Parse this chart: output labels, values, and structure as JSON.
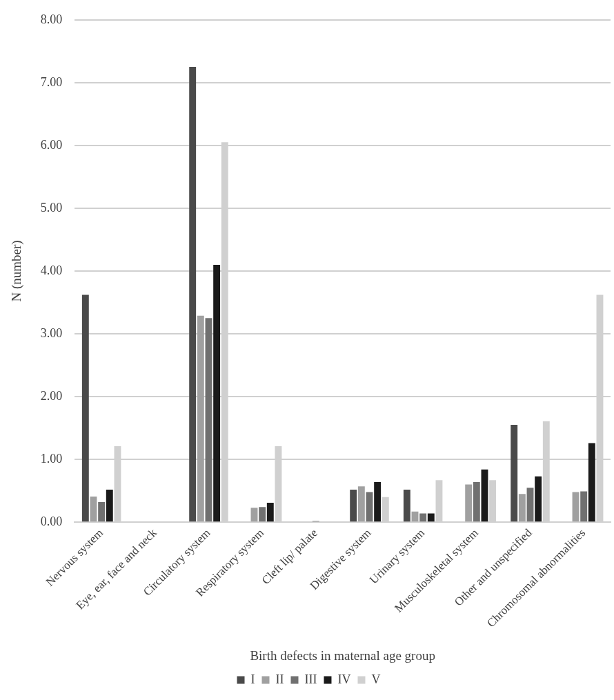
{
  "chart_data": {
    "type": "bar",
    "xlabel": "Birth defects in maternal age group",
    "ylabel": "N (number)",
    "categories": [
      "Nervous system",
      "Eye, ear, face and neck",
      "Circulatory system",
      "Respiratory system",
      "Cleft lip/ palate",
      "Digestive system",
      "Urinary system",
      "Musculoskeletal system",
      "Other and unspecified",
      "Chromosomal abnormalities"
    ],
    "series": [
      {
        "name": "I",
        "color": "#4a4a4a",
        "values": [
          3.62,
          0,
          7.25,
          0,
          0,
          0.52,
          0.52,
          0,
          1.55,
          0
        ]
      },
      {
        "name": "II",
        "color": "#a0a0a0",
        "values": [
          0.41,
          0,
          3.29,
          0.23,
          0,
          0.57,
          0.17,
          0.6,
          0.45,
          0.48
        ]
      },
      {
        "name": "III",
        "color": "#707070",
        "values": [
          0.32,
          0,
          3.25,
          0.24,
          0.02,
          0.48,
          0.14,
          0.64,
          0.55,
          0.49
        ]
      },
      {
        "name": "IV",
        "color": "#1a1a1a",
        "values": [
          0.52,
          0,
          4.1,
          0.31,
          0,
          0.64,
          0.14,
          0.84,
          0.73,
          1.26
        ]
      },
      {
        "name": "V",
        "color": "#d0d0d0",
        "values": [
          1.21,
          0,
          6.05,
          1.21,
          0,
          0.4,
          0.67,
          0.67,
          1.61,
          3.62
        ]
      }
    ],
    "ylim": [
      0,
      8
    ],
    "yticks": [
      {
        "value": 0,
        "label": "0.00"
      },
      {
        "value": 1,
        "label": "1.00"
      },
      {
        "value": 2,
        "label": "2.00"
      },
      {
        "value": 3,
        "label": "3.00"
      },
      {
        "value": 4,
        "label": "4.00"
      },
      {
        "value": 5,
        "label": "5.00"
      },
      {
        "value": 6,
        "label": "6.00"
      },
      {
        "value": 7,
        "label": "7.00"
      },
      {
        "value": 8,
        "label": "8.00"
      }
    ],
    "grid": "y",
    "legend": "bottom"
  }
}
